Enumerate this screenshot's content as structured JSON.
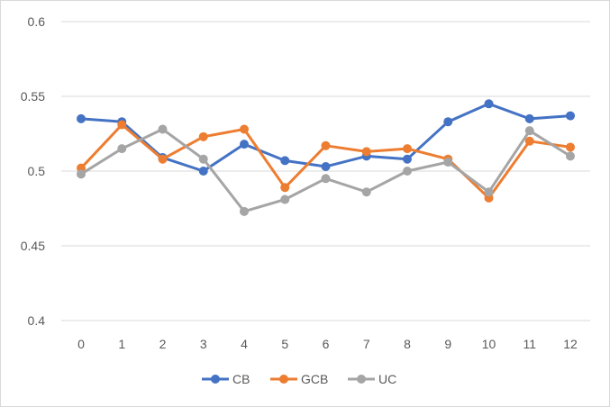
{
  "chart_data": {
    "type": "line",
    "x": [
      0,
      1,
      2,
      3,
      4,
      5,
      6,
      7,
      8,
      9,
      10,
      11,
      12
    ],
    "ylim": [
      0.4,
      0.6
    ],
    "yticks": [
      0.4,
      0.45,
      0.5,
      0.55,
      0.6
    ],
    "ytick_labels": [
      "0.4",
      "0.45",
      "0.5",
      "0.55",
      "0.6"
    ],
    "grid": true,
    "legend": "bottom",
    "title": "",
    "xlabel": "",
    "ylabel": "",
    "series": [
      {
        "name": "CB",
        "color": "#4472c4",
        "values": [
          0.535,
          0.533,
          0.509,
          0.5,
          0.518,
          0.507,
          0.503,
          0.51,
          0.508,
          0.533,
          0.545,
          0.535,
          0.537
        ]
      },
      {
        "name": "GCB",
        "color": "#ed7d31",
        "values": [
          0.502,
          0.531,
          0.508,
          0.523,
          0.528,
          0.489,
          0.517,
          0.513,
          0.515,
          0.508,
          0.482,
          0.52,
          0.516
        ]
      },
      {
        "name": "UC",
        "color": "#a5a5a5",
        "values": [
          0.498,
          0.515,
          0.528,
          0.508,
          0.473,
          0.481,
          0.495,
          0.486,
          0.5,
          0.506,
          0.486,
          0.527,
          0.51
        ]
      }
    ]
  }
}
